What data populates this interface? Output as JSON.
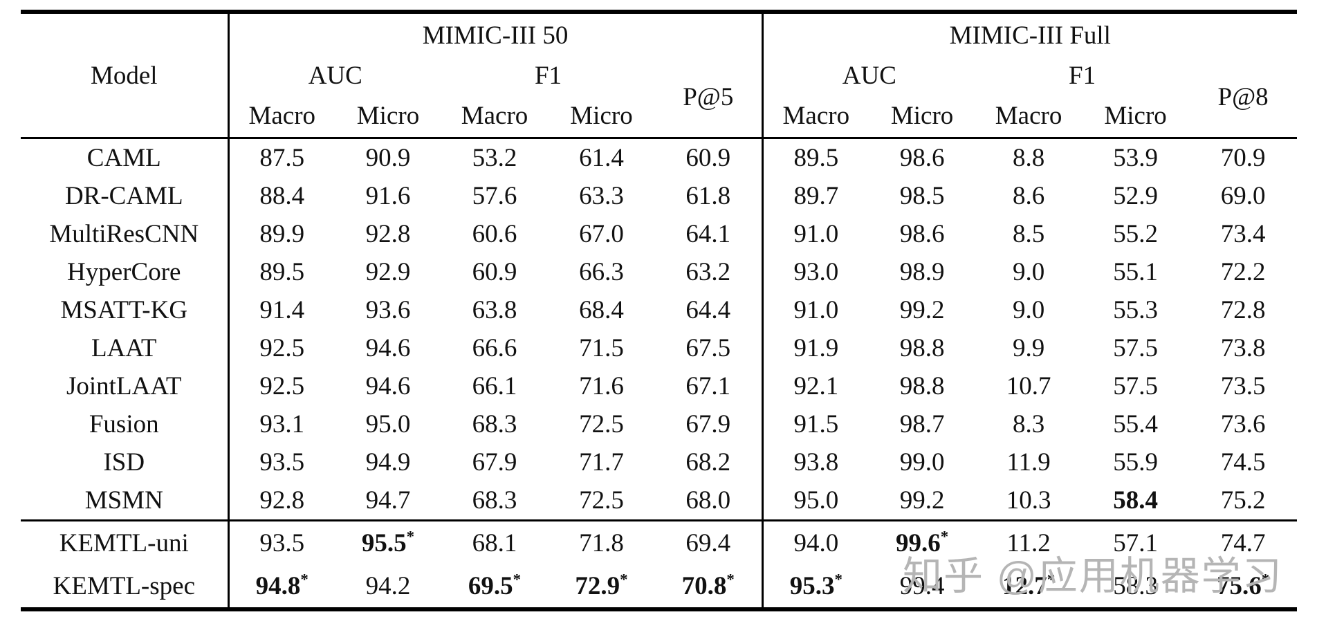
{
  "table": {
    "header": {
      "model_label": "Model",
      "groups": [
        {
          "label": "MIMIC-III 50",
          "auc": "AUC",
          "f1": "F1",
          "p": "P@5",
          "sub": [
            "Macro",
            "Micro",
            "Macro",
            "Micro"
          ]
        },
        {
          "label": "MIMIC-III Full",
          "auc": "AUC",
          "f1": "F1",
          "p": "P@8",
          "sub": [
            "Macro",
            "Micro",
            "Macro",
            "Micro"
          ]
        }
      ]
    },
    "rows": [
      {
        "model": "CAML",
        "cells": [
          {
            "t": "87.5"
          },
          {
            "t": "90.9"
          },
          {
            "t": "53.2"
          },
          {
            "t": "61.4"
          },
          {
            "t": "60.9"
          },
          {
            "t": "89.5"
          },
          {
            "t": "98.6"
          },
          {
            "t": "8.8"
          },
          {
            "t": "53.9"
          },
          {
            "t": "70.9"
          }
        ]
      },
      {
        "model": "DR-CAML",
        "cells": [
          {
            "t": "88.4"
          },
          {
            "t": "91.6"
          },
          {
            "t": "57.6"
          },
          {
            "t": "63.3"
          },
          {
            "t": "61.8"
          },
          {
            "t": "89.7"
          },
          {
            "t": "98.5"
          },
          {
            "t": "8.6"
          },
          {
            "t": "52.9"
          },
          {
            "t": "69.0"
          }
        ]
      },
      {
        "model": "MultiResCNN",
        "cells": [
          {
            "t": "89.9"
          },
          {
            "t": "92.8"
          },
          {
            "t": "60.6"
          },
          {
            "t": "67.0"
          },
          {
            "t": "64.1"
          },
          {
            "t": "91.0"
          },
          {
            "t": "98.6"
          },
          {
            "t": "8.5"
          },
          {
            "t": "55.2"
          },
          {
            "t": "73.4"
          }
        ]
      },
      {
        "model": "HyperCore",
        "cells": [
          {
            "t": "89.5"
          },
          {
            "t": "92.9"
          },
          {
            "t": "60.9"
          },
          {
            "t": "66.3"
          },
          {
            "t": "63.2"
          },
          {
            "t": "93.0"
          },
          {
            "t": "98.9"
          },
          {
            "t": "9.0"
          },
          {
            "t": "55.1"
          },
          {
            "t": "72.2"
          }
        ]
      },
      {
        "model": "MSATT-KG",
        "cells": [
          {
            "t": "91.4"
          },
          {
            "t": "93.6"
          },
          {
            "t": "63.8"
          },
          {
            "t": "68.4"
          },
          {
            "t": "64.4"
          },
          {
            "t": "91.0"
          },
          {
            "t": "99.2"
          },
          {
            "t": "9.0"
          },
          {
            "t": "55.3"
          },
          {
            "t": "72.8"
          }
        ]
      },
      {
        "model": "LAAT",
        "cells": [
          {
            "t": "92.5"
          },
          {
            "t": "94.6"
          },
          {
            "t": "66.6"
          },
          {
            "t": "71.5"
          },
          {
            "t": "67.5"
          },
          {
            "t": "91.9"
          },
          {
            "t": "98.8"
          },
          {
            "t": "9.9"
          },
          {
            "t": "57.5"
          },
          {
            "t": "73.8"
          }
        ]
      },
      {
        "model": "JointLAAT",
        "cells": [
          {
            "t": "92.5"
          },
          {
            "t": "94.6"
          },
          {
            "t": "66.1"
          },
          {
            "t": "71.6"
          },
          {
            "t": "67.1"
          },
          {
            "t": "92.1"
          },
          {
            "t": "98.8"
          },
          {
            "t": "10.7"
          },
          {
            "t": "57.5"
          },
          {
            "t": "73.5"
          }
        ]
      },
      {
        "model": "Fusion",
        "cells": [
          {
            "t": "93.1"
          },
          {
            "t": "95.0"
          },
          {
            "t": "68.3"
          },
          {
            "t": "72.5"
          },
          {
            "t": "67.9"
          },
          {
            "t": "91.5"
          },
          {
            "t": "98.7"
          },
          {
            "t": "8.3"
          },
          {
            "t": "55.4"
          },
          {
            "t": "73.6"
          }
        ]
      },
      {
        "model": "ISD",
        "cells": [
          {
            "t": "93.5"
          },
          {
            "t": "94.9"
          },
          {
            "t": "67.9"
          },
          {
            "t": "71.7"
          },
          {
            "t": "68.2"
          },
          {
            "t": "93.8"
          },
          {
            "t": "99.0"
          },
          {
            "t": "11.9"
          },
          {
            "t": "55.9"
          },
          {
            "t": "74.5"
          }
        ]
      },
      {
        "model": "MSMN",
        "cells": [
          {
            "t": "92.8"
          },
          {
            "t": "94.7"
          },
          {
            "t": "68.3"
          },
          {
            "t": "72.5"
          },
          {
            "t": "68.0"
          },
          {
            "t": "95.0"
          },
          {
            "t": "99.2"
          },
          {
            "t": "10.3"
          },
          {
            "t": "58.4",
            "b": true
          },
          {
            "t": "75.2"
          }
        ]
      }
    ],
    "footer_rows": [
      {
        "model": "KEMTL-uni",
        "cells": [
          {
            "t": "93.5"
          },
          {
            "t": "95.5",
            "b": true,
            "s": "*"
          },
          {
            "t": "68.1"
          },
          {
            "t": "71.8"
          },
          {
            "t": "69.4"
          },
          {
            "t": "94.0"
          },
          {
            "t": "99.6",
            "b": true,
            "s": "*"
          },
          {
            "t": "11.2"
          },
          {
            "t": "57.1"
          },
          {
            "t": "74.7"
          }
        ]
      },
      {
        "model": "KEMTL-spec",
        "cells": [
          {
            "t": "94.8",
            "b": true,
            "s": "*"
          },
          {
            "t": "94.2"
          },
          {
            "t": "69.5",
            "b": true,
            "s": "*"
          },
          {
            "t": "72.9",
            "b": true,
            "s": "*"
          },
          {
            "t": "70.8",
            "b": true,
            "s": "*"
          },
          {
            "t": "95.3",
            "b": true,
            "s": "*"
          },
          {
            "t": "99.4"
          },
          {
            "t": "12.7",
            "b": true,
            "s": "*"
          },
          {
            "t": "58.3"
          },
          {
            "t": "75.6",
            "b": true,
            "s": "*"
          }
        ]
      }
    ]
  },
  "watermark": {
    "text": "知乎 @应用机器学习",
    "color": "#b5b5b5"
  }
}
